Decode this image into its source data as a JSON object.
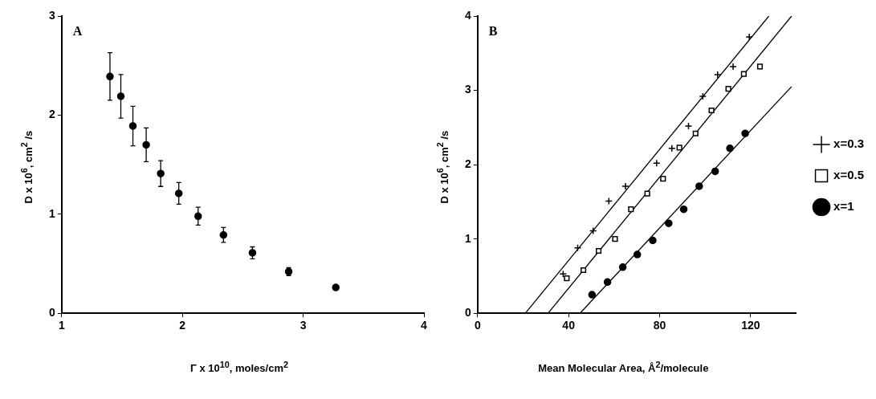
{
  "chart_data": [
    {
      "type": "scatter",
      "xlabel": "Γ x 10$^{10}$, moles/cm$^{2}$",
      "ylabel": "D x 10$^{6}$, cm$^{2}$ /s",
      "annotations": [
        "A"
      ],
      "marker": "circle",
      "color": "#000000",
      "x": [
        1.4,
        1.49,
        1.59,
        1.7,
        1.82,
        1.97,
        2.13,
        2.34,
        2.58,
        2.88,
        3.27
      ],
      "values": [
        2.39,
        2.19,
        1.89,
        1.7,
        1.41,
        1.21,
        0.98,
        0.79,
        0.61,
        0.42,
        0.26
      ],
      "errors": [
        0.24,
        0.22,
        0.2,
        0.17,
        0.13,
        0.11,
        0.09,
        0.075,
        0.06,
        0.04,
        null
      ],
      "xlim": [
        1,
        4
      ],
      "xticks": [
        1,
        2,
        3,
        4
      ],
      "ylim": [
        0,
        3
      ],
      "yticks": [
        0,
        1,
        2,
        3
      ],
      "grid": false,
      "legend": false
    },
    {
      "type": "scatter",
      "xlabel": "Mean Molecular Area, Å$^{2}$/molecule",
      "ylabel": "D  x  10$^{6}$, cm$^{2}$ /s",
      "annotations": [
        "B"
      ],
      "legend": "right",
      "grid": false,
      "xlim": [
        0,
        140
      ],
      "xticks": [
        0,
        40,
        80,
        120
      ],
      "ylim": [
        0,
        4
      ],
      "yticks": [
        0,
        1,
        2,
        3,
        4
      ],
      "series": [
        {
          "name": "x=0.3",
          "marker": "cross",
          "color": "#000000",
          "x": [
            37.6,
            44,
            50.8,
            57.7,
            65,
            78.7,
            85.4,
            92.7,
            99,
            105.5,
            112.3,
            119.4
          ],
          "values": [
            0.53,
            0.88,
            1.11,
            1.51,
            1.71,
            2.02,
            2.22,
            2.52,
            2.92,
            3.21,
            3.32,
            3.72
          ]
        },
        {
          "name": "x=0.5",
          "marker": "square",
          "color": "#000000",
          "x": [
            39.2,
            46.5,
            53.2,
            60.4,
            67.4,
            74.6,
            81.5,
            88.7,
            95.8,
            102.8,
            110.2,
            117,
            124.1
          ],
          "values": [
            0.47,
            0.58,
            0.84,
            1.0,
            1.4,
            1.61,
            1.81,
            2.23,
            2.42,
            2.73,
            3.02,
            3.22,
            3.32
          ]
        },
        {
          "name": "x=1",
          "marker": "circle",
          "color": "#000000",
          "x": [
            50.3,
            57.1,
            63.8,
            70.2,
            77,
            84,
            90.6,
            97.4,
            104.4,
            110.9,
            117.6
          ],
          "values": [
            0.25,
            0.42,
            0.62,
            0.79,
            0.98,
            1.21,
            1.4,
            1.71,
            1.91,
            2.22,
            2.42
          ]
        },
        {
          "type": "line",
          "color": "#000000",
          "x": [
            21,
            128
          ],
          "values": [
            0,
            4
          ]
        },
        {
          "type": "line",
          "color": "#000000",
          "x": [
            31,
            138
          ],
          "values": [
            0,
            4
          ]
        },
        {
          "type": "line",
          "color": "#000000",
          "x": [
            45,
            138
          ],
          "values": [
            0,
            3.05
          ]
        }
      ]
    }
  ]
}
